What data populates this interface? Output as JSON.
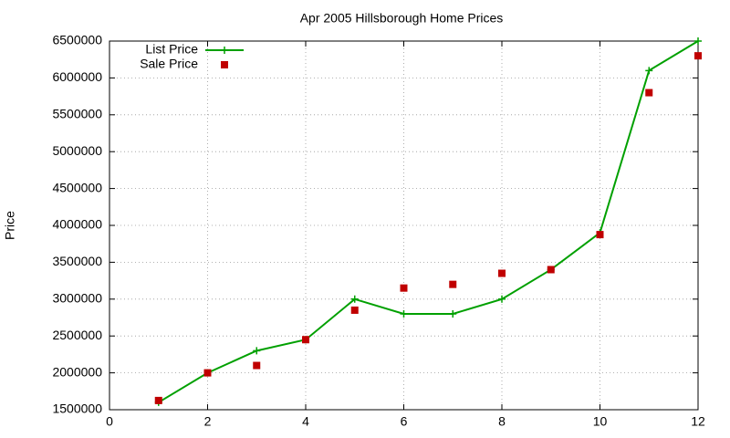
{
  "chart_data": {
    "type": "line",
    "title": "Apr 2005 Hillsborough Home Prices",
    "y_label": "Price",
    "x": [
      1,
      2,
      3,
      4,
      5,
      6,
      7,
      8,
      9,
      10,
      11,
      12
    ],
    "series": [
      {
        "name": "List Price",
        "color": "#00a000",
        "style": "linespoints",
        "values": [
          1600000,
          2000000,
          2300000,
          2450000,
          3000000,
          2800000,
          2800000,
          3000000,
          3400000,
          3900000,
          6100000,
          6500000
        ]
      },
      {
        "name": "Sale Price",
        "color": "#c00000",
        "style": "points",
        "values": [
          1625000,
          2000000,
          2100000,
          2450000,
          2850000,
          3150000,
          3200000,
          3350000,
          3400000,
          3875000,
          5800000,
          6300000
        ]
      }
    ],
    "xlim": [
      0,
      12
    ],
    "xticks": [
      0,
      2,
      4,
      6,
      8,
      10,
      12
    ],
    "ylim": [
      1500000,
      6500000
    ],
    "yticks": [
      1500000,
      2000000,
      2500000,
      3000000,
      3500000,
      4000000,
      4500000,
      5000000,
      5500000,
      6000000,
      6500000
    ],
    "grid": true,
    "legend": "top-left"
  }
}
